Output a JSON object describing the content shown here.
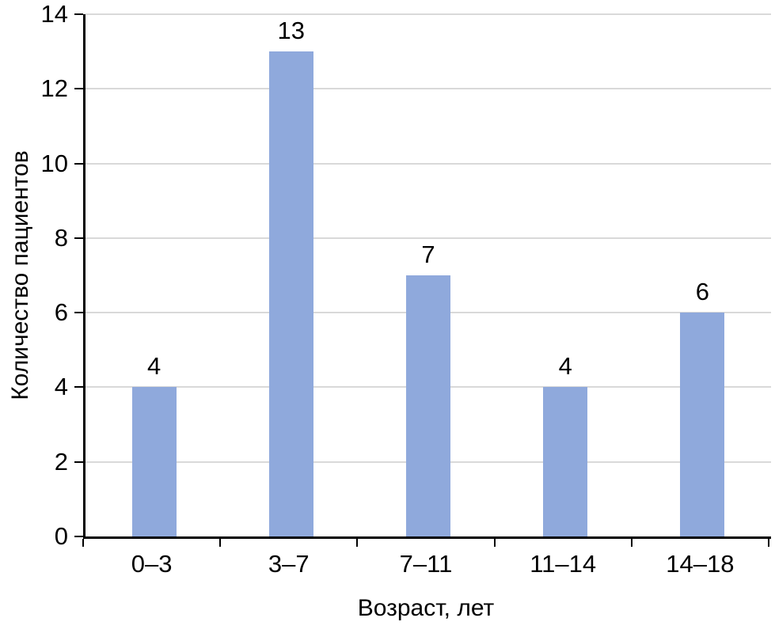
{
  "chart_data": {
    "type": "bar",
    "categories": [
      "0–3",
      "3–7",
      "7–11",
      "11–14",
      "14–18"
    ],
    "values": [
      4,
      13,
      7,
      4,
      6
    ],
    "title": "",
    "xlabel": "Возраст, лет",
    "ylabel": "Количество пациентов",
    "ylim": [
      0,
      14
    ],
    "ytick_step": 2,
    "yticks": [
      0,
      2,
      4,
      6,
      8,
      10,
      12,
      14
    ],
    "grid": true,
    "legend": false,
    "bar_color": "#8FA9DC",
    "gridline_color": "#D9D9D9",
    "axis_color": "#000000",
    "text_color": "#000000",
    "background_color": "#FFFFFF"
  }
}
